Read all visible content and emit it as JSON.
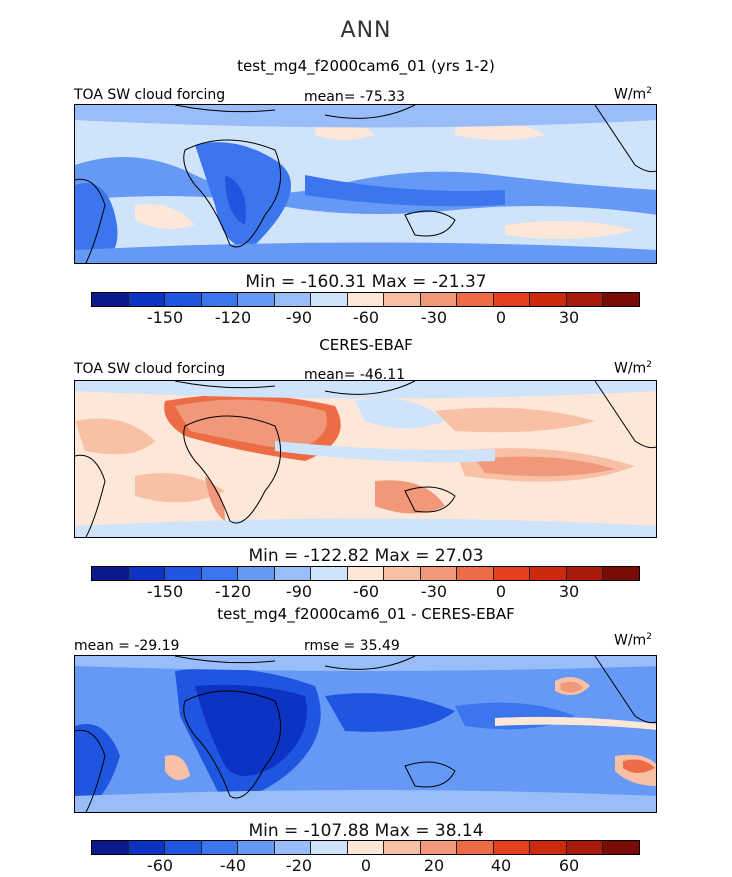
{
  "main_title": "ANN",
  "colors": {
    "cbar": [
      "#0a1a8c",
      "#0c33c2",
      "#1f56e0",
      "#3b76ee",
      "#6699f5",
      "#99bdf8",
      "#cfe3fb",
      "#fde7d8",
      "#f8c1a6",
      "#f2987a",
      "#ec6d45",
      "#e5401e",
      "#cc2a0c",
      "#a81b0a",
      "#7b0b06"
    ]
  },
  "panels": [
    {
      "title": "test_mg4_f2000cam6_01 (yrs 1-2)",
      "left_label": "TOA SW cloud forcing",
      "center_label": "mean= -75.33",
      "units": "W/m",
      "units_sup": "2",
      "minmax": "Min = -160.31 Max = -21.37",
      "ticks": [
        "-150",
        "-120",
        "-90",
        "-60",
        "-30",
        "0",
        "30"
      ]
    },
    {
      "title": "CERES-EBAF",
      "left_label": "TOA SW cloud forcing",
      "center_label": "mean= -46.11",
      "units": "W/m",
      "units_sup": "2",
      "minmax": "Min = -122.82 Max =  27.03",
      "ticks": [
        "-150",
        "-120",
        "-90",
        "-60",
        "-30",
        "0",
        "30"
      ]
    },
    {
      "title": "test_mg4_f2000cam6_01 - CERES-EBAF",
      "left_label": "mean = -29.19",
      "center_label": "rmse =  35.49",
      "units": "W/m",
      "units_sup": "2",
      "minmax": "Min = -107.88 Max =  38.14",
      "ticks": [
        "-60",
        "-40",
        "-20",
        "0",
        "20",
        "40",
        "60"
      ]
    }
  ],
  "chart_data": [
    {
      "type": "heatmap",
      "title": "test_mg4_f2000cam6_01 (yrs 1-2)",
      "variable": "TOA SW cloud forcing",
      "mean": -75.33,
      "min": -160.31,
      "max": -21.37,
      "units": "W/m2",
      "colorbar_ticks": [
        -150,
        -120,
        -90,
        -60,
        -30,
        0,
        30
      ]
    },
    {
      "type": "heatmap",
      "title": "CERES-EBAF",
      "variable": "TOA SW cloud forcing",
      "mean": -46.11,
      "min": -122.82,
      "max": 27.03,
      "units": "W/m2",
      "colorbar_ticks": [
        -150,
        -120,
        -90,
        -60,
        -30,
        0,
        30
      ]
    },
    {
      "type": "heatmap",
      "title": "test_mg4_f2000cam6_01 - CERES-EBAF",
      "mean": -29.19,
      "rmse": 35.49,
      "min": -107.88,
      "max": 38.14,
      "units": "W/m2",
      "colorbar_ticks": [
        -60,
        -40,
        -20,
        0,
        20,
        40,
        60
      ]
    }
  ]
}
